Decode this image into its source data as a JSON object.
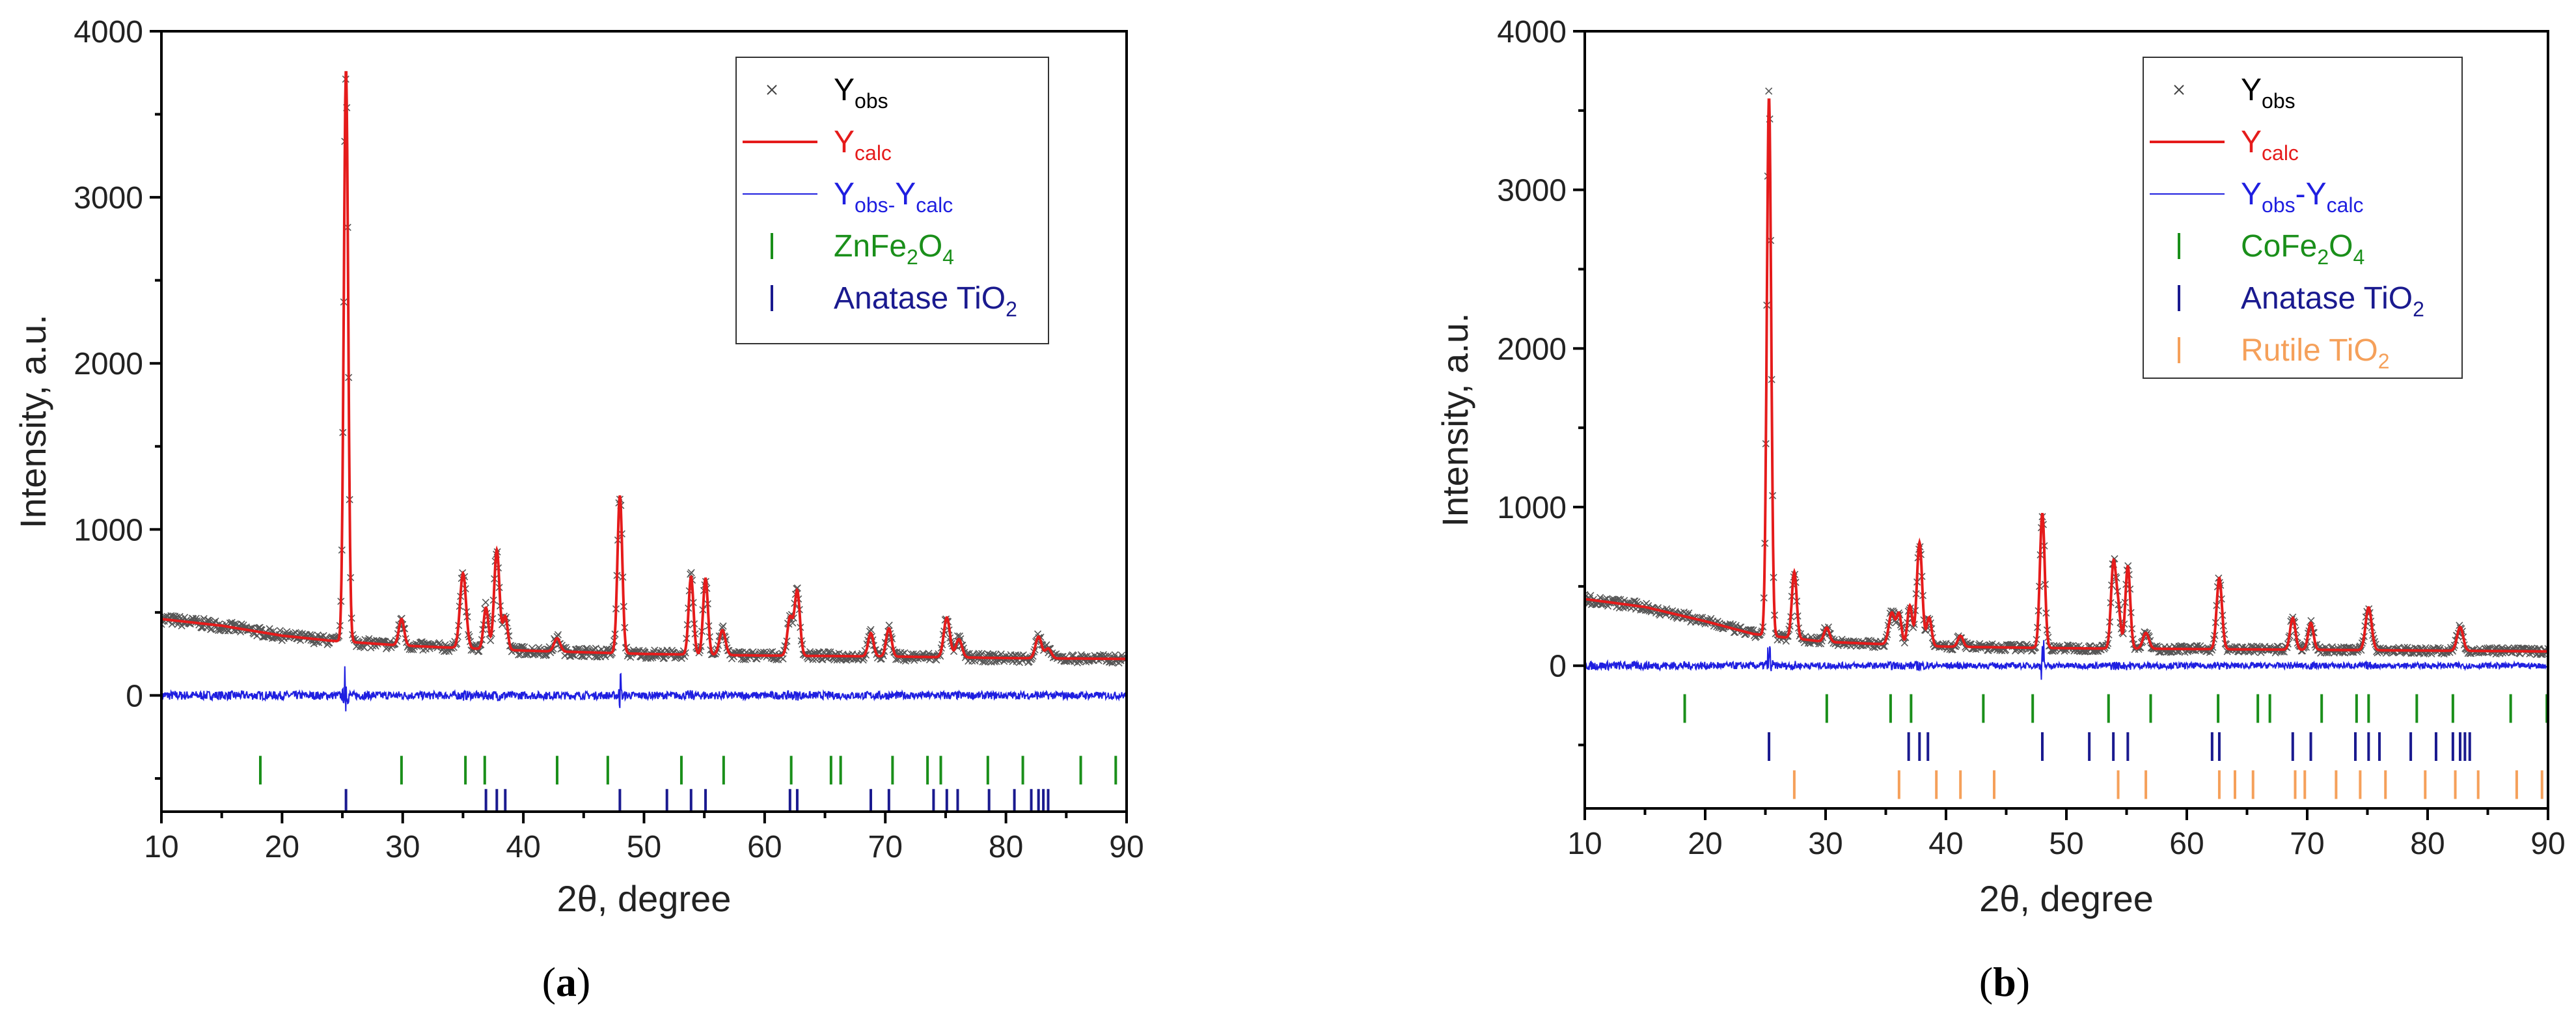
{
  "chart_data": [
    {
      "type": "line",
      "panel": "a",
      "panel_label": "(a)",
      "xlabel": "2θ, degree",
      "ylabel": "Intensity, a.u.",
      "xlim": [
        10,
        90
      ],
      "ylim": [
        -700,
        4000
      ],
      "xticks": [
        "10",
        "20",
        "30",
        "40",
        "50",
        "60",
        "70",
        "80",
        "90"
      ],
      "yticks": [
        "0",
        "1000",
        "2000",
        "3000",
        "4000"
      ],
      "background": [
        [
          10,
          460
        ],
        [
          15,
          420
        ],
        [
          20,
          360
        ],
        [
          24,
          330
        ],
        [
          30,
          300
        ],
        [
          40,
          270
        ],
        [
          50,
          250
        ],
        [
          60,
          240
        ],
        [
          70,
          235
        ],
        [
          80,
          225
        ],
        [
          90,
          220
        ]
      ],
      "peaks": [
        [
          25.3,
          3450,
          0.18
        ],
        [
          29.9,
          160,
          0.22
        ],
        [
          35.0,
          450,
          0.25
        ],
        [
          36.9,
          250,
          0.2
        ],
        [
          37.8,
          600,
          0.22
        ],
        [
          38.5,
          200,
          0.2
        ],
        [
          42.8,
          80,
          0.25
        ],
        [
          48.0,
          950,
          0.2
        ],
        [
          53.9,
          470,
          0.2
        ],
        [
          55.1,
          460,
          0.2
        ],
        [
          56.5,
          150,
          0.25
        ],
        [
          62.1,
          230,
          0.22
        ],
        [
          62.7,
          390,
          0.22
        ],
        [
          68.8,
          140,
          0.22
        ],
        [
          70.3,
          170,
          0.22
        ],
        [
          75.1,
          240,
          0.25
        ],
        [
          76.1,
          110,
          0.25
        ],
        [
          82.7,
          130,
          0.25
        ],
        [
          83.5,
          60,
          0.25
        ]
      ],
      "series": [
        {
          "name": "Yobs",
          "color": "#555555",
          "label_main": "Y",
          "label_sub": "obs"
        },
        {
          "name": "Ycalc",
          "color": "#e51b1b",
          "label_main": "Y",
          "label_sub": "calc"
        },
        {
          "name": "Yobs-Ycalc",
          "color": "#1f1fe0",
          "label_main": "Y",
          "label_sub": "obs-",
          "label_main2": "Y",
          "label_sub2": "calc"
        }
      ],
      "phases": [
        {
          "name": "ZnFe2O4",
          "color": "#1a8f1a",
          "label_parts": [
            [
              "ZnFe",
              ""
            ],
            [
              "2",
              "sub"
            ],
            [
              "O",
              ""
            ],
            [
              "4",
              "sub"
            ]
          ],
          "row_y": -450,
          "positions": [
            18.2,
            29.9,
            35.2,
            36.8,
            42.8,
            47.0,
            53.1,
            56.6,
            62.2,
            65.5,
            66.3,
            70.6,
            73.5,
            74.6,
            78.5,
            81.4,
            86.2,
            89.1
          ]
        },
        {
          "name": "Anatase TiO2",
          "color": "#1a1a8f",
          "label_parts": [
            [
              "Anatase TiO",
              ""
            ],
            [
              "2",
              "sub"
            ]
          ],
          "row_y": -650,
          "positions": [
            25.3,
            36.9,
            37.8,
            38.5,
            48.0,
            51.9,
            53.9,
            55.1,
            62.1,
            62.7,
            68.8,
            70.3,
            74.0,
            75.1,
            76.0,
            78.6,
            80.7,
            82.1,
            82.7,
            83.1,
            83.5
          ]
        }
      ]
    },
    {
      "type": "line",
      "panel": "b",
      "panel_label": "(b)",
      "xlabel": "2θ, degree",
      "ylabel": "Intensity, a.u.",
      "xlim": [
        10,
        90
      ],
      "ylim": [
        -900,
        4000
      ],
      "xticks": [
        "10",
        "20",
        "30",
        "40",
        "50",
        "60",
        "70",
        "80",
        "90"
      ],
      "yticks": [
        "0",
        "1000",
        "2000",
        "3000",
        "4000"
      ],
      "background": [
        [
          10,
          420
        ],
        [
          15,
          370
        ],
        [
          20,
          280
        ],
        [
          24,
          200
        ],
        [
          30,
          150
        ],
        [
          40,
          120
        ],
        [
          50,
          110
        ],
        [
          60,
          105
        ],
        [
          70,
          100
        ],
        [
          80,
          95
        ],
        [
          90,
          90
        ]
      ],
      "peaks": [
        [
          25.3,
          3400,
          0.18
        ],
        [
          27.4,
          420,
          0.2
        ],
        [
          30.1,
          90,
          0.22
        ],
        [
          35.5,
          200,
          0.25
        ],
        [
          36.1,
          190,
          0.2
        ],
        [
          37.0,
          250,
          0.2
        ],
        [
          37.8,
          650,
          0.22
        ],
        [
          38.6,
          180,
          0.2
        ],
        [
          41.2,
          70,
          0.22
        ],
        [
          48.0,
          850,
          0.2
        ],
        [
          53.9,
          520,
          0.2
        ],
        [
          54.3,
          250,
          0.2
        ],
        [
          55.1,
          520,
          0.2
        ],
        [
          56.6,
          100,
          0.25
        ],
        [
          62.7,
          450,
          0.22
        ],
        [
          68.8,
          200,
          0.22
        ],
        [
          70.3,
          170,
          0.22
        ],
        [
          75.1,
          270,
          0.25
        ],
        [
          82.7,
          150,
          0.25
        ]
      ],
      "series": [
        {
          "name": "Yobs",
          "color": "#555555",
          "label_main": "Y",
          "label_sub": "obs"
        },
        {
          "name": "Ycalc",
          "color": "#e51b1b",
          "label_main": "Y",
          "label_sub": "calc"
        },
        {
          "name": "Yobs-Ycalc",
          "color": "#1f1fe0",
          "label_main": "Y",
          "label_sub": "obs",
          "label_main2": "-Y",
          "label_sub2": "calc"
        }
      ],
      "phases": [
        {
          "name": "CoFe2O4",
          "color": "#1a8f1a",
          "label_parts": [
            [
              "CoFe",
              ""
            ],
            [
              "2",
              "sub"
            ],
            [
              "O",
              ""
            ],
            [
              "4",
              "sub"
            ]
          ],
          "row_y": -270,
          "positions": [
            18.3,
            30.1,
            35.4,
            37.1,
            43.1,
            47.2,
            53.5,
            57.0,
            62.6,
            65.9,
            66.9,
            71.2,
            74.1,
            75.1,
            79.1,
            82.1,
            86.9,
            89.9
          ]
        },
        {
          "name": "Anatase TiO2",
          "color": "#1a1a8f",
          "label_parts": [
            [
              "Anatase TiO",
              ""
            ],
            [
              "2",
              "sub"
            ]
          ],
          "row_y": -510,
          "positions": [
            25.3,
            36.9,
            37.8,
            38.5,
            48.0,
            51.9,
            53.9,
            55.1,
            62.1,
            62.7,
            68.8,
            70.3,
            74.0,
            75.1,
            76.0,
            78.6,
            80.7,
            82.1,
            82.7,
            83.1,
            83.5
          ]
        },
        {
          "name": "Rutile TiO2",
          "color": "#f5a05a",
          "label_parts": [
            [
              "Rutile TiO",
              ""
            ],
            [
              "2",
              "sub"
            ]
          ],
          "row_y": -750,
          "positions": [
            27.4,
            36.1,
            39.2,
            41.2,
            44.0,
            54.3,
            56.6,
            62.7,
            64.0,
            65.5,
            69.0,
            69.8,
            72.4,
            74.4,
            76.5,
            79.8,
            82.3,
            84.2,
            87.4,
            89.5
          ]
        }
      ]
    }
  ]
}
